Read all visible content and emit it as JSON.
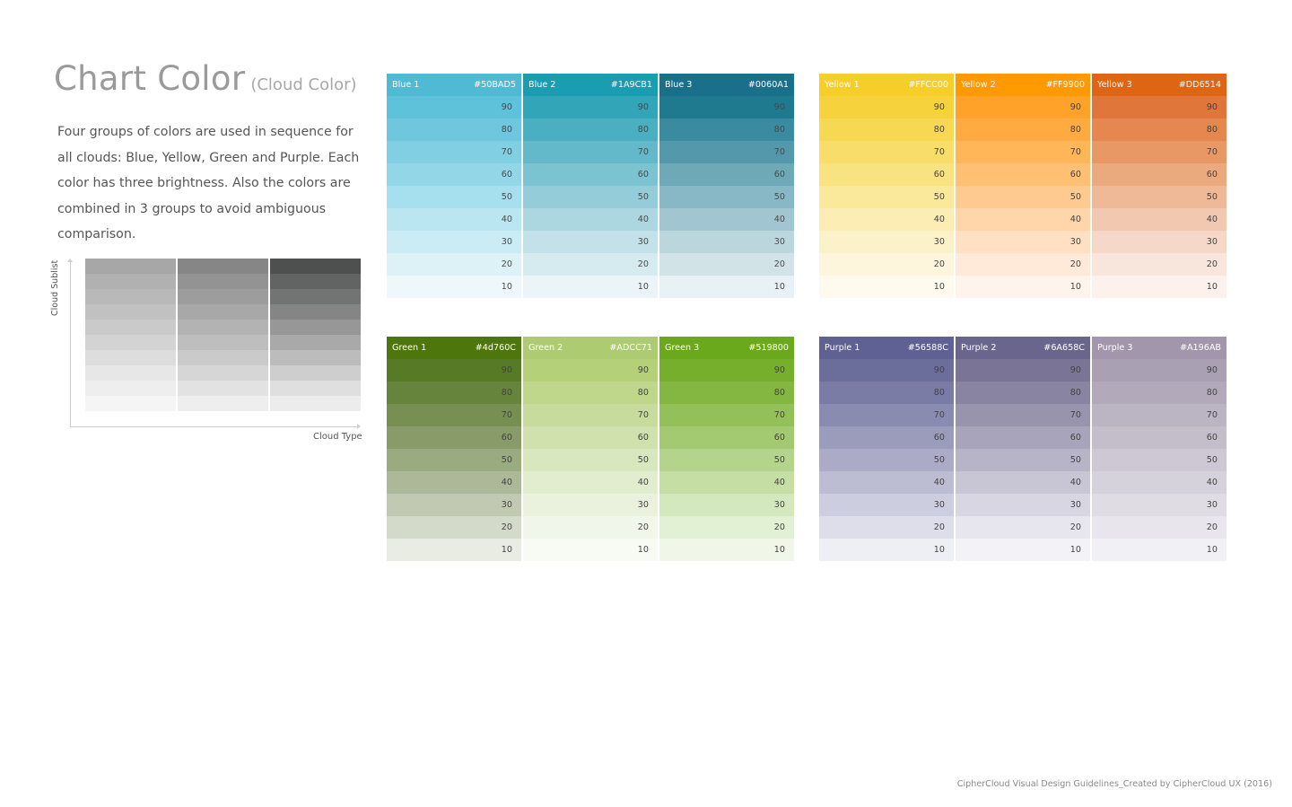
{
  "title": {
    "main": "Chart Color",
    "sub": "(Cloud Color)"
  },
  "description": "Four groups of colors are used in sequence for all clouds: Blue, Yellow, Green and Purple. Each color has three brightness. Also the colors are combined in 3 groups to avoid ambiguous comparison.",
  "legend": {
    "ylabel": "Cloud Sublist",
    "xlabel": "Cloud Type",
    "grid_columns": [
      [
        "#a6a7a6",
        "#b0b1b0",
        "#b8b9b8",
        "#c0c1c0",
        "#c9cac9",
        "#d2d3d2",
        "#dcdddc",
        "#e6e7e6",
        "#eeeeee",
        "#f5f5f5"
      ],
      [
        "#868686",
        "#939393",
        "#9d9d9d",
        "#a8a8a8",
        "#b3b3b3",
        "#bebebe",
        "#cacaca",
        "#d6d6d6",
        "#e2e2e2",
        "#eeeeee"
      ],
      [
        "#4e504f",
        "#626463",
        "#727473",
        "#848584",
        "#969796",
        "#a8a9a8",
        "#bbbcbb",
        "#cdcecd",
        "#dfdfdf",
        "#ececec"
      ]
    ]
  },
  "levels": [
    "90",
    "80",
    "70",
    "60",
    "50",
    "40",
    "30",
    "20",
    "10"
  ],
  "groups": [
    {
      "name": "blue",
      "columns": [
        {
          "name": "Blue 1",
          "hex": "#50BAD5",
          "header_color": "#50BAD5",
          "text_color": "#4a4a4a",
          "shades": [
            "#5ec2db",
            "#6fc7df",
            "#81cfe3",
            "#93d6e8",
            "#a6dfed",
            "#b9e6f0",
            "#cbecf4",
            "#dcf2f7",
            "#eef8fb"
          ]
        },
        {
          "name": "Blue 2",
          "hex": "#1A9CB1",
          "header_color": "#1A9CB1",
          "text_color": "#4a4a4a",
          "shades": [
            "#32a5b8",
            "#4aafc0",
            "#63b9c9",
            "#7bc3d1",
            "#94cdd9",
            "#acd7e1",
            "#c2e1e8",
            "#d6ebf0",
            "#ebf5f8"
          ]
        },
        {
          "name": "Blue 3",
          "hex": "#0060A1",
          "header_color": "#1a6f8a",
          "text_color": "#4a4a4a",
          "shades": [
            "#1f7a90",
            "#3a8aa0",
            "#5399ab",
            "#6ea9b8",
            "#88b7c5",
            "#a2c6d1",
            "#bcd6dd",
            "#d2e3e8",
            "#e8f1f4"
          ]
        }
      ]
    },
    {
      "name": "yellow",
      "columns": [
        {
          "name": "Yellow 1",
          "hex": "#FFCC00",
          "header_color": "#F5CE2A",
          "text_color": "#444444",
          "shades": [
            "#f6d33d",
            "#f7d852",
            "#f8dd6a",
            "#f9e381",
            "#fae89b",
            "#fbedb3",
            "#fcf2c9",
            "#fdf6dc",
            "#fefaee"
          ]
        },
        {
          "name": "Yellow 2",
          "hex": "#FF9900",
          "header_color": "#FF9900",
          "text_color": "#444444",
          "shades": [
            "#ffa22a",
            "#ffab41",
            "#ffb659",
            "#ffc074",
            "#ffca8f",
            "#ffd5a9",
            "#ffe0c3",
            "#ffe9d8",
            "#fff4ec"
          ]
        },
        {
          "name": "Yellow 3",
          "hex": "#DD6514",
          "header_color": "#DD6514",
          "text_color": "#444444",
          "shades": [
            "#e1763a",
            "#e5874f",
            "#e89865",
            "#eba97e",
            "#efb997",
            "#f2c9b0",
            "#f5d8c8",
            "#f8e5db",
            "#fcf1ed"
          ]
        }
      ]
    },
    {
      "name": "green",
      "columns": [
        {
          "name": "Green 1",
          "hex": "#4d760C",
          "header_color": "#4d760C",
          "text_color": "#444444",
          "shades": [
            "#567a26",
            "#66843b",
            "#778f50",
            "#889b68",
            "#9aab80",
            "#adb899",
            "#c1c9b2",
            "#d4dac9",
            "#e9ece3"
          ]
        },
        {
          "name": "Green 2",
          "hex": "#ADCC71",
          "header_color": "#ADCC71",
          "text_color": "#444444",
          "shades": [
            "#b4d17a",
            "#bed78b",
            "#c7dc9c",
            "#d0e1ad",
            "#d9e7be",
            "#e2ecce",
            "#eaf1dd",
            "#f1f6ea",
            "#f8faf4"
          ]
        },
        {
          "name": "Green 3",
          "hex": "#519800",
          "header_color": "#6aa81c",
          "text_color": "#444444",
          "shades": [
            "#75af2c",
            "#84b741",
            "#93c058",
            "#a4ca71",
            "#b4d48b",
            "#c4dea4",
            "#d4e8bd",
            "#e2f0d3",
            "#f0f7e8"
          ]
        }
      ]
    },
    {
      "name": "purple",
      "columns": [
        {
          "name": "Purple 1",
          "hex": "#56588C",
          "header_color": "#5f6093",
          "text_color": "#444444",
          "shades": [
            "#6b6d9b",
            "#7a7ca6",
            "#8a8bb0",
            "#9b9cbc",
            "#ababc7",
            "#bcbcd3",
            "#cdcde0",
            "#dedeeb",
            "#eeeef5"
          ]
        },
        {
          "name": "Purple 2",
          "hex": "#6A658C",
          "header_color": "#6A658C",
          "text_color": "#444444",
          "shades": [
            "#7a7596",
            "#8884a2",
            "#9894ae",
            "#a8a4bb",
            "#b8b4c8",
            "#c8c5d5",
            "#d8d6e2",
            "#e7e5ee",
            "#f3f2f7"
          ]
        },
        {
          "name": "Purple 3",
          "hex": "#A196AB",
          "header_color": "#A196AB",
          "text_color": "#444444",
          "shades": [
            "#a9a0b3",
            "#b2aabb",
            "#bbb4c3",
            "#c4becb",
            "#cdc8d3",
            "#d6d2db",
            "#dfdce3",
            "#e8e6ec",
            "#f1f0f4"
          ]
        }
      ]
    }
  ],
  "footer": "CipherCloud Visual Design Guidelines_Created by CipherCloud UX (2016)"
}
